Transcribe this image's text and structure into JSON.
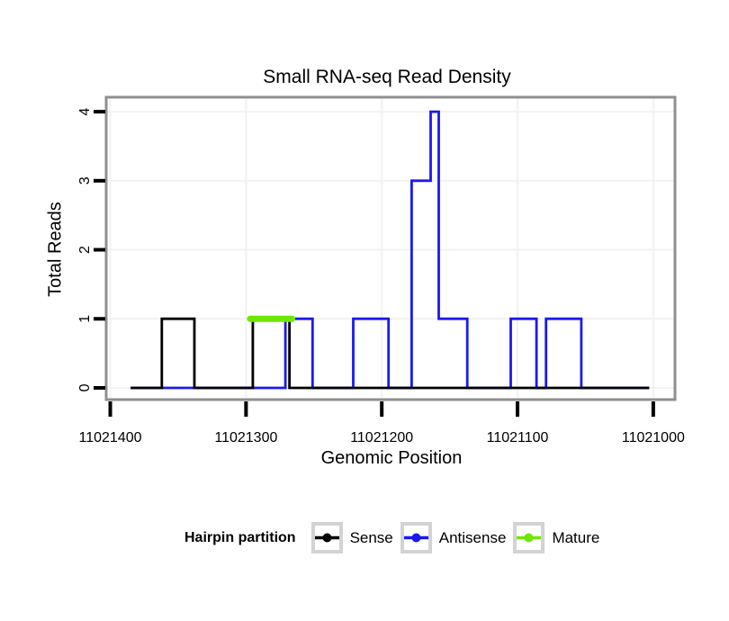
{
  "chart_data": {
    "type": "line",
    "title": "Small RNA-seq Read Density",
    "xlabel": "Genomic Position",
    "ylabel": "Total Reads",
    "x_axis": {
      "reversed": true,
      "lim": [
        11021403,
        11020984
      ],
      "ticks": [
        11021400,
        11021300,
        11021200,
        11021100,
        11021000
      ]
    },
    "y_axis": {
      "lim": [
        -0.17,
        4.21
      ],
      "ticks": [
        0,
        1,
        2,
        3,
        4
      ]
    },
    "grid": true,
    "series": [
      {
        "name": "Antisense",
        "color": "#1A1AEE",
        "width": 2.8,
        "points": [
          [
            11021385,
            0
          ],
          [
            11021271,
            0
          ],
          [
            11021271,
            1
          ],
          [
            11021251,
            1
          ],
          [
            11021251,
            0
          ],
          [
            11021221,
            0
          ],
          [
            11021221,
            1
          ],
          [
            11021195,
            1
          ],
          [
            11021195,
            0
          ],
          [
            11021178,
            0
          ],
          [
            11021178,
            3
          ],
          [
            11021164,
            3
          ],
          [
            11021164,
            4
          ],
          [
            11021158,
            4
          ],
          [
            11021158,
            1
          ],
          [
            11021137,
            1
          ],
          [
            11021137,
            0
          ],
          [
            11021105,
            0
          ],
          [
            11021105,
            1
          ],
          [
            11021086,
            1
          ],
          [
            11021086,
            0
          ],
          [
            11021079,
            0
          ],
          [
            11021079,
            1
          ],
          [
            11021053,
            1
          ],
          [
            11021053,
            0
          ],
          [
            11021003,
            0
          ]
        ]
      },
      {
        "name": "Sense",
        "color": "#000000",
        "width": 2.8,
        "points": [
          [
            11021385,
            0
          ],
          [
            11021362,
            0
          ],
          [
            11021362,
            1
          ],
          [
            11021338,
            1
          ],
          [
            11021338,
            0
          ],
          [
            11021295,
            0
          ],
          [
            11021295,
            1
          ],
          [
            11021268,
            1
          ],
          [
            11021268,
            0
          ],
          [
            11021003,
            0
          ]
        ]
      },
      {
        "name": "Mature",
        "color": "#6EE800",
        "width": 7,
        "linecap": "round",
        "points": [
          [
            11021297,
            1
          ],
          [
            11021266,
            1
          ]
        ]
      }
    ]
  },
  "legend": {
    "title": "Hairpin partition",
    "items": [
      {
        "label": "Sense",
        "color": "#000000"
      },
      {
        "label": "Antisense",
        "color": "#1A1AEE"
      },
      {
        "label": "Mature",
        "color": "#6EE800"
      }
    ]
  },
  "style": {
    "panel_border": "#8F8F8F",
    "panel_fill": "#FFFFFF",
    "grid_color": "#F2F2F2",
    "tick_color": "#000000",
    "legend_key_border": "#D3D3D3"
  }
}
